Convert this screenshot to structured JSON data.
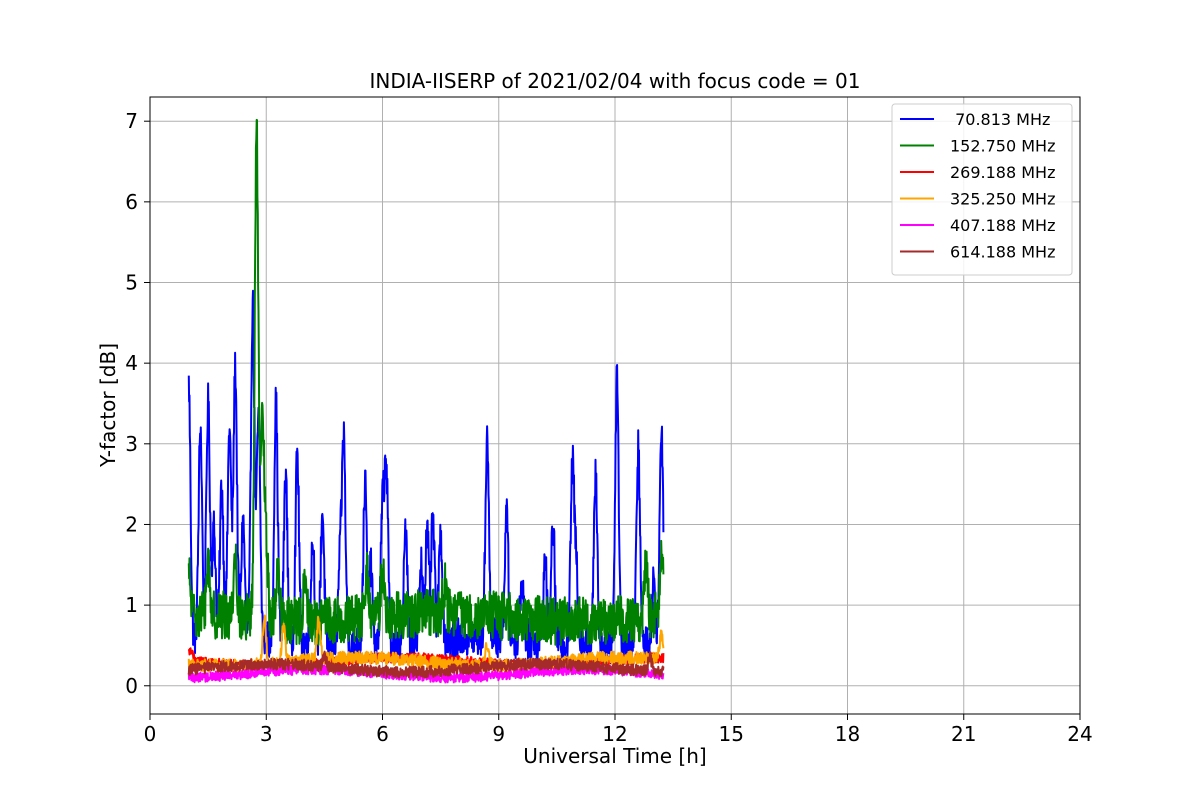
{
  "chart_data": {
    "type": "line",
    "title": "INDIA-IISERP of 2021/02/04 with focus code = 01",
    "xlabel": "Universal Time [h]",
    "ylabel": "Y-factor [dB]",
    "xlim": [
      0,
      24
    ],
    "ylim": [
      -0.35,
      7.3
    ],
    "xticks": [
      0,
      3,
      6,
      9,
      12,
      15,
      18,
      21,
      24
    ],
    "yticks": [
      0,
      1,
      2,
      3,
      4,
      5,
      6,
      7
    ],
    "grid": true,
    "legend_position": "top-right",
    "data_x_range": [
      1.0,
      13.25
    ],
    "series": [
      {
        "name": " 70.813 MHz",
        "color": "#0000ff",
        "baseline": 0.55,
        "noise": 0.25,
        "peaks": [
          [
            1.0,
            3.7
          ],
          [
            1.3,
            3.15
          ],
          [
            1.5,
            3.45
          ],
          [
            1.65,
            1.9
          ],
          [
            1.85,
            2.45
          ],
          [
            2.05,
            3.15
          ],
          [
            2.2,
            3.9
          ],
          [
            2.4,
            2.0
          ],
          [
            2.65,
            4.7
          ],
          [
            2.8,
            3.3
          ],
          [
            3.25,
            3.5
          ],
          [
            3.5,
            2.65
          ],
          [
            3.8,
            2.9
          ],
          [
            4.2,
            1.85
          ],
          [
            4.45,
            2.2
          ],
          [
            4.9,
            1.55
          ],
          [
            5.0,
            3.1
          ],
          [
            5.55,
            2.55
          ],
          [
            5.7,
            1.5
          ],
          [
            6.0,
            2.2
          ],
          [
            6.1,
            2.7
          ],
          [
            6.6,
            2.0
          ],
          [
            7.0,
            1.5
          ],
          [
            7.15,
            1.9
          ],
          [
            7.3,
            2.05
          ],
          [
            7.5,
            1.85
          ],
          [
            8.7,
            3.05
          ],
          [
            9.2,
            2.1
          ],
          [
            9.6,
            1.3
          ],
          [
            10.2,
            1.55
          ],
          [
            10.4,
            2.0
          ],
          [
            10.9,
            2.75
          ],
          [
            11.0,
            1.5
          ],
          [
            11.5,
            2.65
          ],
          [
            12.05,
            3.95
          ],
          [
            12.6,
            3.0
          ],
          [
            13.0,
            1.35
          ],
          [
            13.2,
            3.3
          ]
        ]
      },
      {
        "name": "152.750 MHz",
        "color": "#008000",
        "baseline": 0.85,
        "noise": 0.3,
        "peaks": [
          [
            1.0,
            1.3
          ],
          [
            1.5,
            1.5
          ],
          [
            2.2,
            1.6
          ],
          [
            2.75,
            6.97
          ],
          [
            2.9,
            3.3
          ],
          [
            3.0,
            1.7
          ],
          [
            3.3,
            1.5
          ],
          [
            4.0,
            1.3
          ],
          [
            5.6,
            1.4
          ],
          [
            6.0,
            1.45
          ],
          [
            7.6,
            1.2
          ],
          [
            12.8,
            1.5
          ],
          [
            13.2,
            1.65
          ]
        ]
      },
      {
        "name": "269.188 MHz",
        "color": "#ff0000",
        "baseline": 0.3,
        "noise": 0.06,
        "peaks": [
          [
            1.05,
            0.45
          ],
          [
            4.5,
            0.35
          ],
          [
            9.5,
            0.35
          ]
        ]
      },
      {
        "name": "325.250 MHz",
        "color": "#ffa500",
        "baseline": 0.3,
        "noise": 0.08,
        "peaks": [
          [
            2.95,
            0.9
          ],
          [
            3.45,
            0.75
          ],
          [
            4.35,
            0.8
          ],
          [
            8.7,
            0.55
          ],
          [
            13.2,
            0.6
          ]
        ]
      },
      {
        "name": "407.188 MHz",
        "color": "#ff00ff",
        "baseline": 0.15,
        "noise": 0.06,
        "peaks": []
      },
      {
        "name": "614.188 MHz",
        "color": "#a52a2a",
        "baseline": 0.22,
        "noise": 0.07,
        "peaks": [
          [
            4.5,
            0.35
          ],
          [
            12.9,
            0.4
          ]
        ]
      }
    ]
  }
}
